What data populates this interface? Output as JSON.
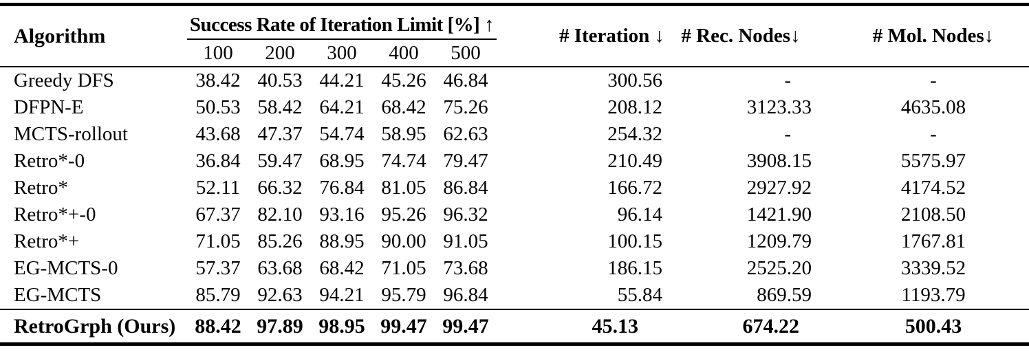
{
  "table": {
    "header": {
      "algorithm": "Algorithm",
      "group": "Success Rate of Iteration Limit [%] ↑",
      "sub_columns": [
        "100",
        "200",
        "300",
        "400",
        "500"
      ],
      "iteration": "# Iteration ↓",
      "rec_nodes": "# Rec. Nodes↓",
      "mol_nodes": "# Mol. Nodes↓"
    },
    "rows": [
      {
        "algorithm": "Greedy DFS",
        "rates": [
          "38.42",
          "40.53",
          "44.21",
          "45.26",
          "46.84"
        ],
        "iteration": "300.56",
        "rec_nodes": "-",
        "mol_nodes": "-"
      },
      {
        "algorithm": "DFPN-E",
        "rates": [
          "50.53",
          "58.42",
          "64.21",
          "68.42",
          "75.26"
        ],
        "iteration": "208.12",
        "rec_nodes": "3123.33",
        "mol_nodes": "4635.08"
      },
      {
        "algorithm": "MCTS-rollout",
        "rates": [
          "43.68",
          "47.37",
          "54.74",
          "58.95",
          "62.63"
        ],
        "iteration": "254.32",
        "rec_nodes": "-",
        "mol_nodes": "-"
      },
      {
        "algorithm": "Retro*-0",
        "rates": [
          "36.84",
          "59.47",
          "68.95",
          "74.74",
          "79.47"
        ],
        "iteration": "210.49",
        "rec_nodes": "3908.15",
        "mol_nodes": "5575.97"
      },
      {
        "algorithm": "Retro*",
        "rates": [
          "52.11",
          "66.32",
          "76.84",
          "81.05",
          "86.84"
        ],
        "iteration": "166.72",
        "rec_nodes": "2927.92",
        "mol_nodes": "4174.52"
      },
      {
        "algorithm": "Retro*+-0",
        "rates": [
          "67.37",
          "82.10",
          "93.16",
          "95.26",
          "96.32"
        ],
        "iteration": "96.14",
        "rec_nodes": "1421.90",
        "mol_nodes": "2108.50"
      },
      {
        "algorithm": "Retro*+",
        "rates": [
          "71.05",
          "85.26",
          "88.95",
          "90.00",
          "91.05"
        ],
        "iteration": "100.15",
        "rec_nodes": "1209.79",
        "mol_nodes": "1767.81"
      },
      {
        "algorithm": "EG-MCTS-0",
        "rates": [
          "57.37",
          "63.68",
          "68.42",
          "71.05",
          "73.68"
        ],
        "iteration": "186.15",
        "rec_nodes": "2525.20",
        "mol_nodes": "3339.52"
      },
      {
        "algorithm": "EG-MCTS",
        "rates": [
          "85.79",
          "92.63",
          "94.21",
          "95.79",
          "96.84"
        ],
        "iteration": "55.84",
        "rec_nodes": "869.59",
        "mol_nodes": "1193.79"
      }
    ],
    "highlight_row": {
      "algorithm": "RetroGrph (Ours)",
      "rates": [
        "88.42",
        "97.89",
        "98.95",
        "99.47",
        "99.47"
      ],
      "iteration": "45.13",
      "rec_nodes": "674.22",
      "mol_nodes": "500.43"
    }
  }
}
